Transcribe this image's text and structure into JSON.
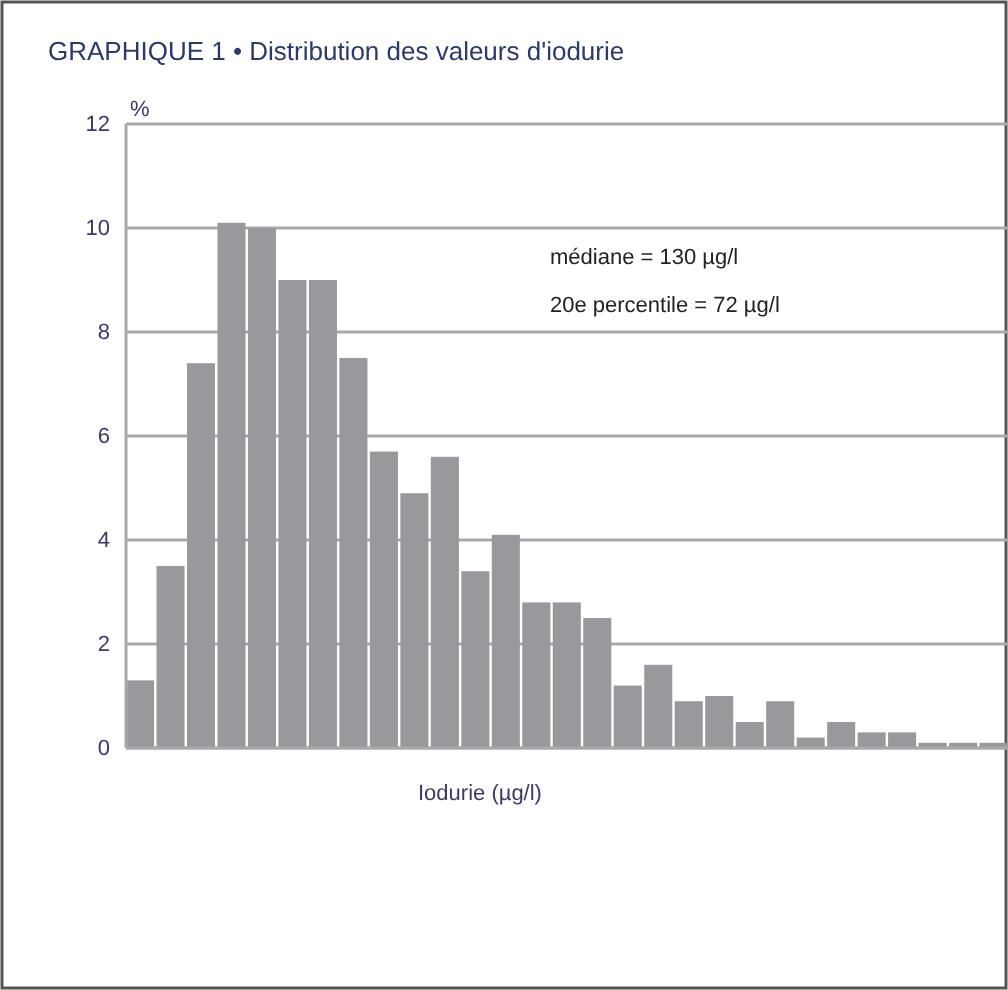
{
  "chart_data": {
    "type": "bar",
    "title": "GRAPHIQUE 1 • Distribution des valeurs d'iodurie",
    "ylabel": "%",
    "xlabel": "Iodurie (µg/l)",
    "categories": [
      null,
      null,
      null,
      null,
      null,
      null,
      null,
      null,
      null,
      null,
      null,
      null,
      null,
      null,
      null,
      null,
      null,
      null,
      null,
      null,
      null,
      null,
      null,
      null,
      null,
      null,
      null,
      null,
      null
    ],
    "values": [
      1.3,
      3.5,
      7.4,
      10.1,
      10.0,
      9.0,
      9.0,
      7.5,
      5.7,
      4.9,
      5.6,
      3.4,
      4.1,
      2.8,
      2.8,
      2.5,
      1.2,
      1.6,
      0.9,
      1.0,
      0.5,
      0.9,
      0.2,
      0.5,
      0.3,
      0.3,
      0.1,
      0.1,
      0.1
    ],
    "color": "#98999d",
    "ylim": [
      0,
      12
    ],
    "yticks": [
      0,
      2,
      4,
      6,
      8,
      10,
      12
    ],
    "grid": "y",
    "annotations": [
      "médiane = 130 µg/l",
      "20e percentile = 72 µg/l"
    ]
  }
}
